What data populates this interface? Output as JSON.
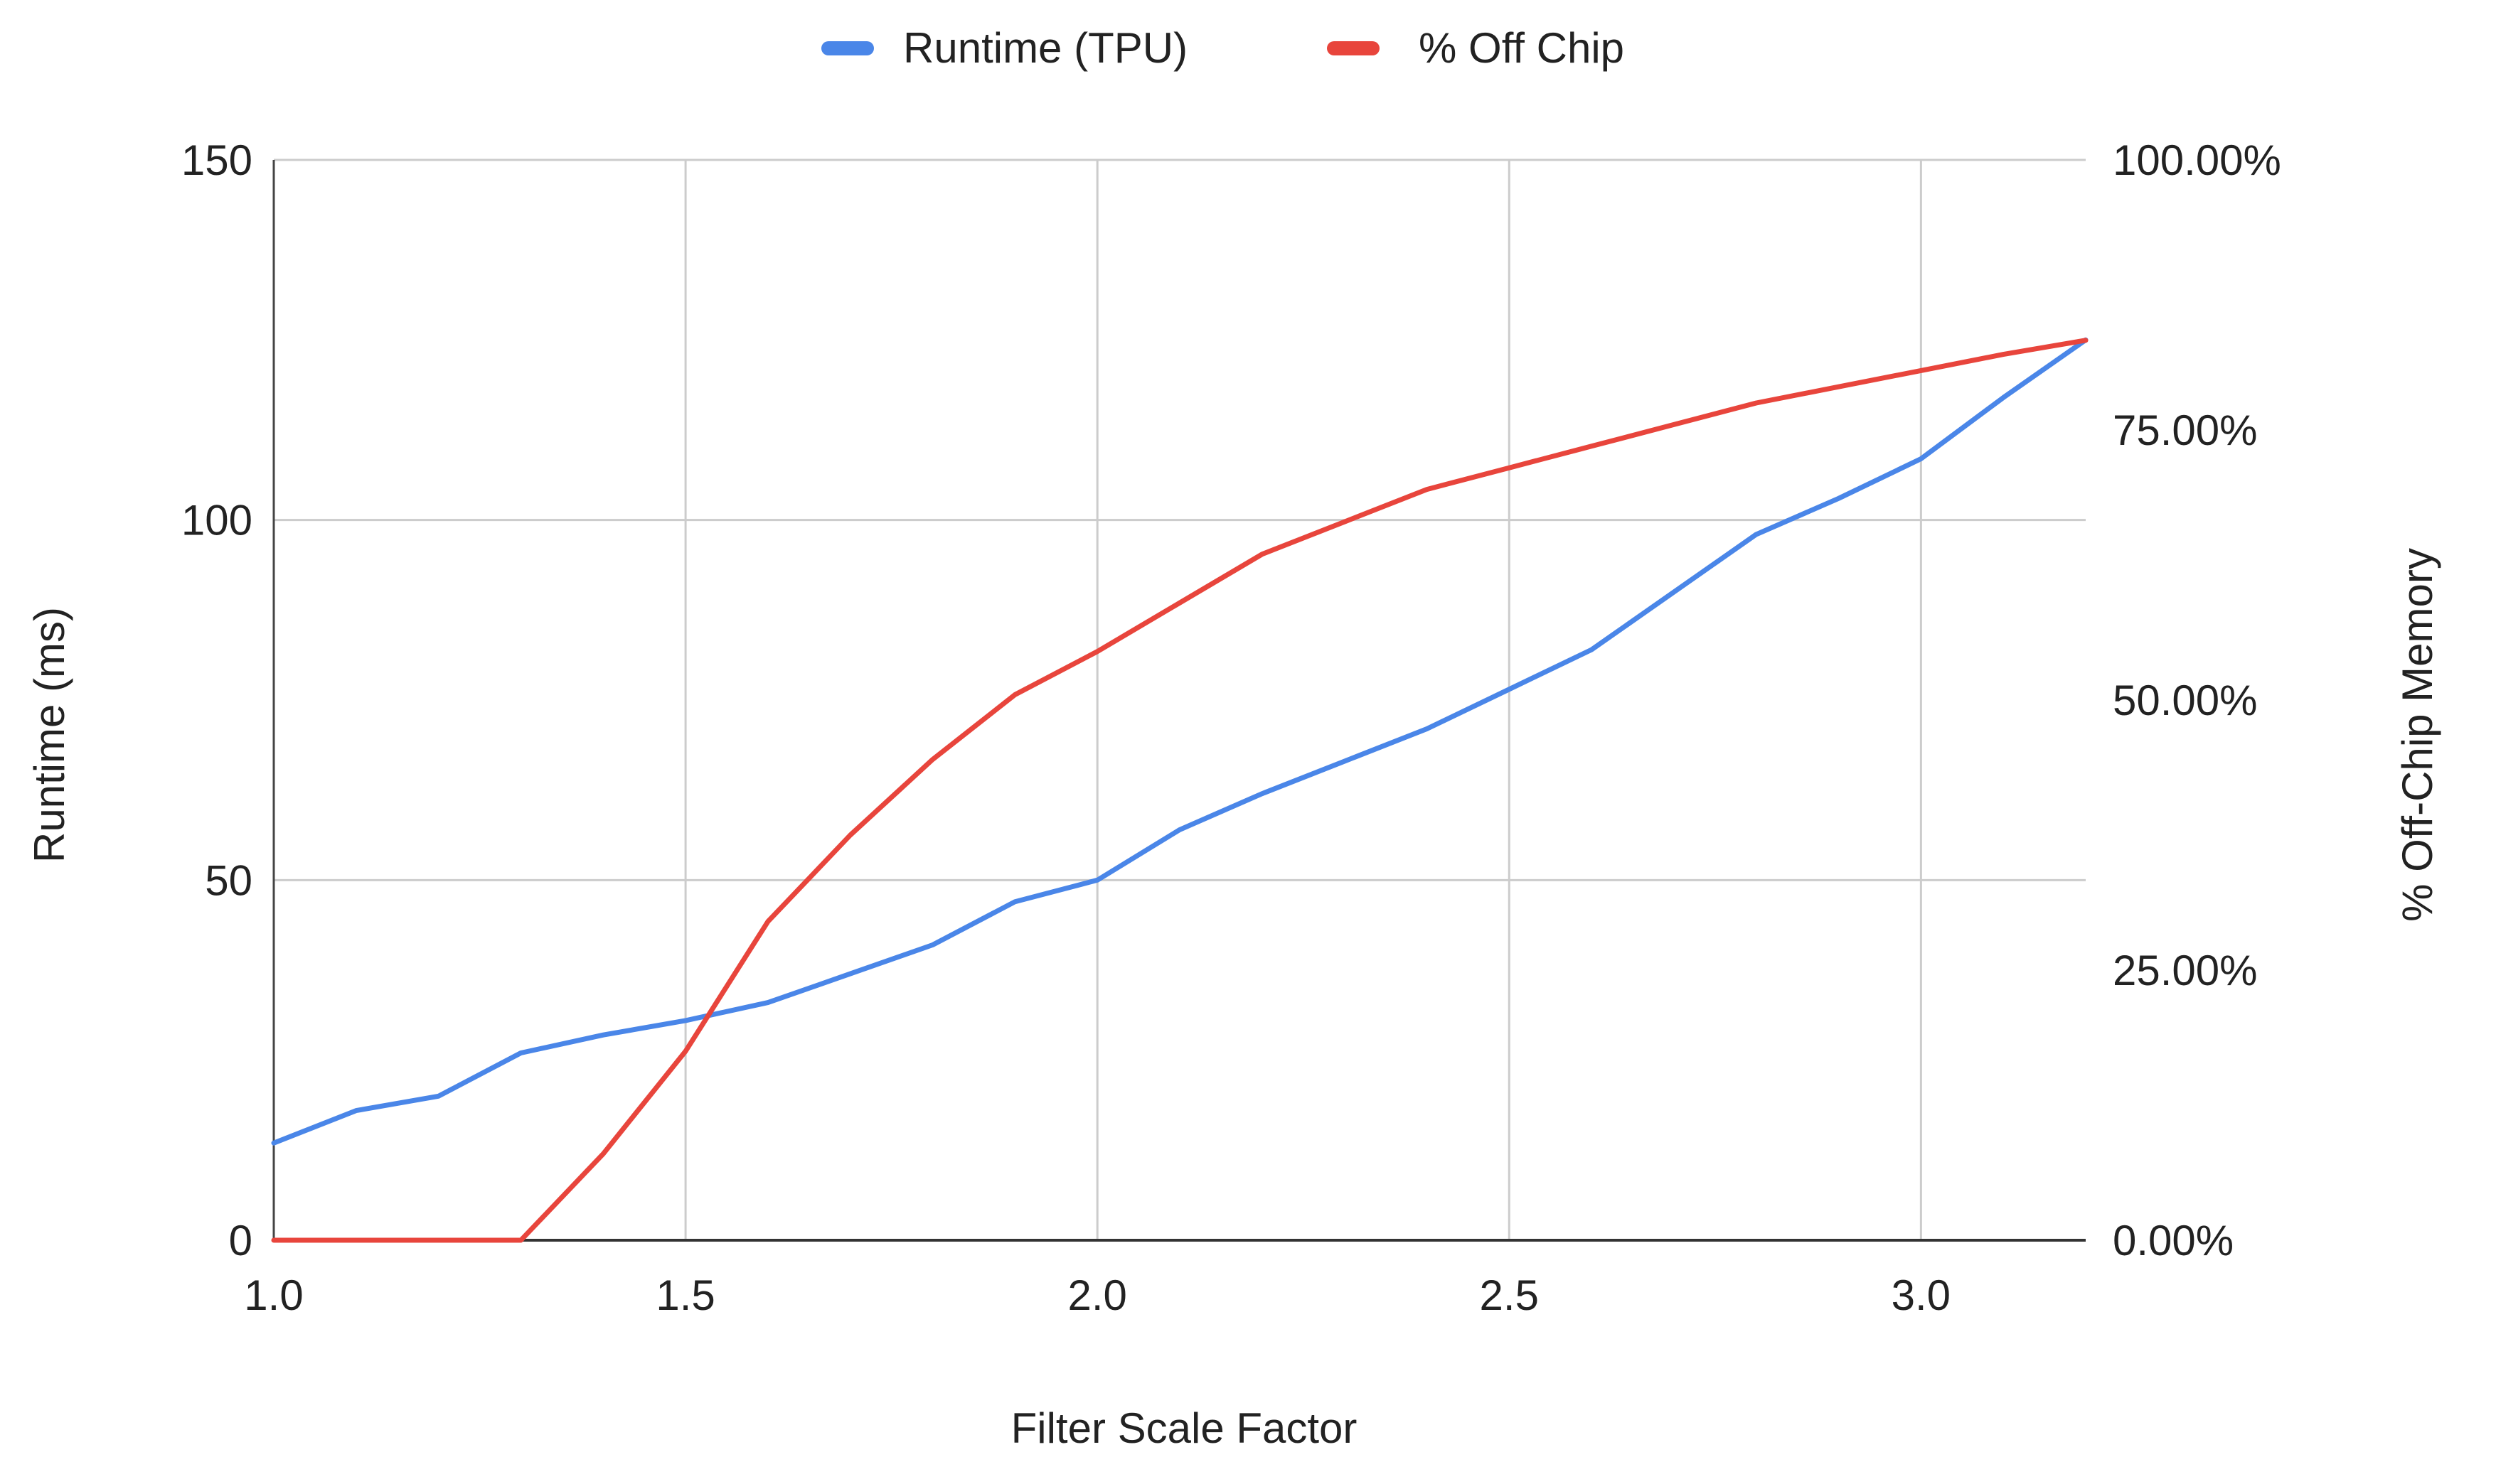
{
  "chart_data": {
    "type": "line",
    "title": "",
    "xlabel": "Filter Scale Factor",
    "ylabel": "Runtime (ms)",
    "y2label": "% Off-Chip Memory",
    "xlim": [
      1.0,
      3.2
    ],
    "ylim": [
      0,
      150
    ],
    "y2lim": [
      0,
      100
    ],
    "grid": true,
    "legend_position": "top",
    "x_tick_labels": [
      "1.0",
      "1.5",
      "2.0",
      "2.5",
      "3.0"
    ],
    "x_ticks": [
      1.0,
      1.5,
      2.0,
      2.5,
      3.0
    ],
    "y_tick_labels": [
      "0",
      "50",
      "100",
      "150"
    ],
    "y_ticks": [
      0,
      50,
      100,
      150
    ],
    "y2_tick_labels": [
      "0.00%",
      "25.00%",
      "50.00%",
      "75.00%",
      "100.00%"
    ],
    "y2_ticks": [
      0,
      25,
      50,
      75,
      100
    ],
    "x": [
      1.0,
      1.1,
      1.2,
      1.3,
      1.4,
      1.5,
      1.6,
      1.7,
      1.8,
      1.9,
      2.0,
      2.1,
      2.2,
      2.3,
      2.4,
      2.5,
      2.6,
      2.7,
      2.8,
      2.9,
      3.0,
      3.1,
      3.2
    ],
    "series": [
      {
        "name": "Runtime (TPU)",
        "axis": "left",
        "color": "#4a86e8",
        "values": [
          13.5,
          18,
          20,
          26,
          28.5,
          30.5,
          33,
          37,
          41,
          47,
          50,
          57,
          62,
          66.5,
          71,
          76.5,
          82,
          90,
          98,
          103,
          108.5,
          117,
          125
        ]
      },
      {
        "name": "% Off Chip",
        "axis": "right",
        "color": "#e8453c",
        "values": [
          0,
          0,
          0,
          0,
          8,
          17.5,
          29.5,
          37.5,
          44.5,
          50.5,
          54.5,
          59,
          63.5,
          66.5,
          69.5,
          71.5,
          73.5,
          75.5,
          77.5,
          79,
          80.5,
          82,
          83.3
        ]
      }
    ]
  }
}
